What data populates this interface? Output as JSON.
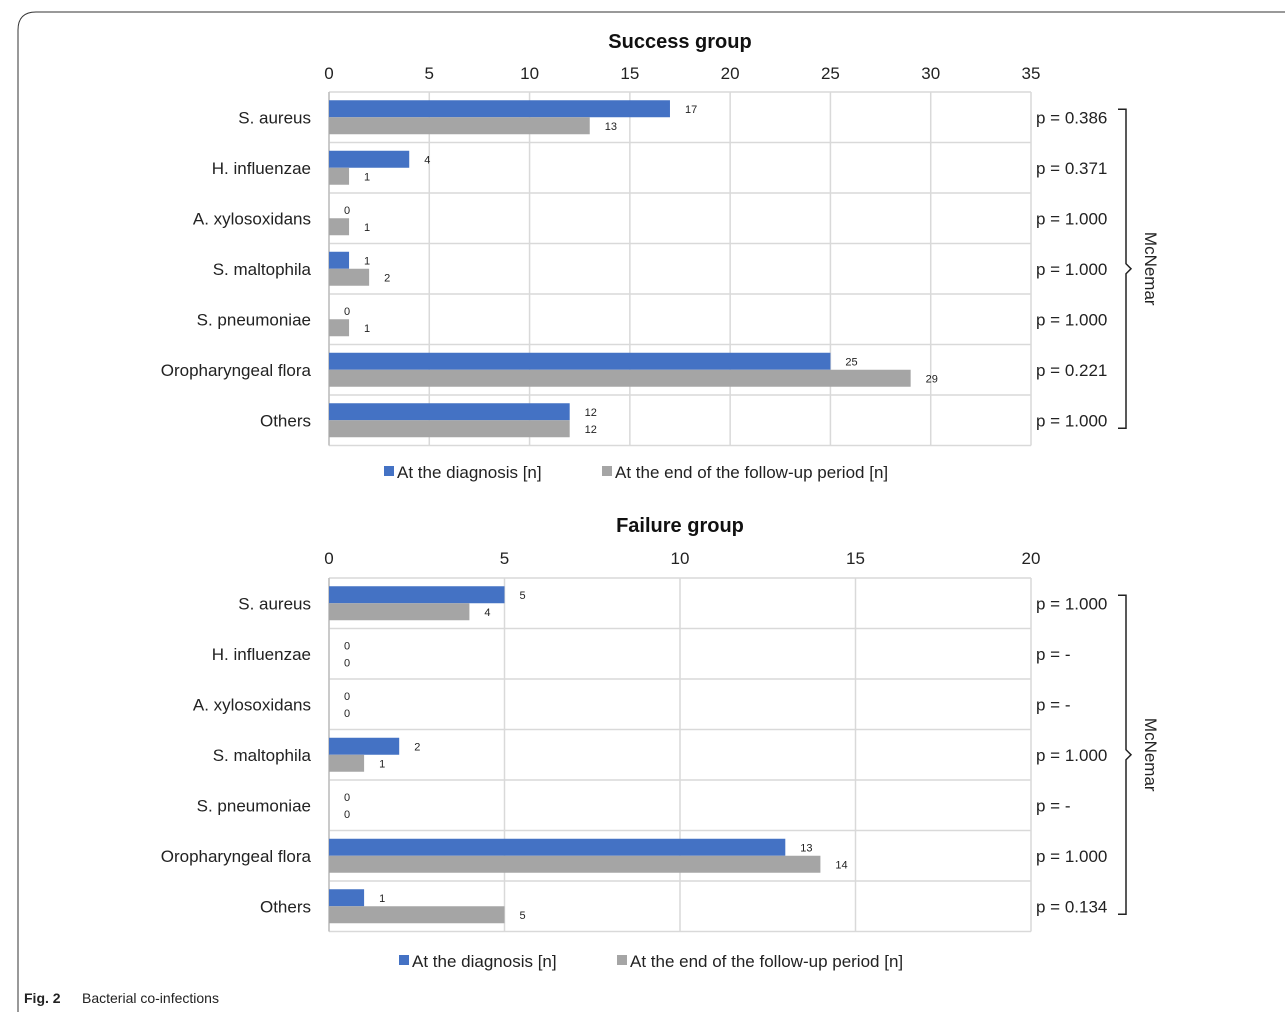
{
  "caption": {
    "prefix": "Fig. 2",
    "text": "Bacterial co-infections"
  },
  "legend": {
    "series_a": "At the diagnosis [n]",
    "series_b": "At the end of the follow-up period [n]"
  },
  "colors": {
    "series_a": "#4472C4",
    "series_b": "#A5A5A5",
    "grid": "#D9D9D9",
    "frame": "#333333"
  },
  "chart_data": [
    {
      "type": "bar",
      "orientation": "horizontal",
      "title": "Success group",
      "xlim": [
        0,
        35
      ],
      "ticks": [
        0,
        5,
        10,
        15,
        20,
        25,
        30,
        35
      ],
      "categories": [
        "S. aureus",
        "H. influenzae",
        "A. xylosoxidans",
        "S. maltophila",
        "S. pneumoniae",
        "Oropharyngeal flora",
        "Others"
      ],
      "series": [
        {
          "name": "At the diagnosis [n]",
          "values": [
            17,
            4,
            0,
            1,
            0,
            25,
            12
          ]
        },
        {
          "name": "At the end of the follow-up period [n]",
          "values": [
            13,
            1,
            1,
            2,
            1,
            29,
            12
          ]
        }
      ],
      "p_values": [
        "p = 0.386",
        "p = 0.371",
        "p = 1.000",
        "p = 1.000",
        "p = 1.000",
        "p = 0.221",
        "p = 1.000"
      ],
      "bracket_label": "McNemar",
      "grid": true,
      "legend_position": "bottom"
    },
    {
      "type": "bar",
      "orientation": "horizontal",
      "title": "Failure group",
      "xlim": [
        0,
        20
      ],
      "ticks": [
        0,
        5,
        10,
        15,
        20
      ],
      "categories": [
        "S. aureus",
        "H. influenzae",
        "A. xylosoxidans",
        "S. maltophila",
        "S. pneumoniae",
        "Oropharyngeal flora",
        "Others"
      ],
      "series": [
        {
          "name": "At the diagnosis [n]",
          "values": [
            5,
            0,
            0,
            2,
            0,
            13,
            1
          ]
        },
        {
          "name": "At the end of the follow-up period [n]",
          "values": [
            4,
            0,
            0,
            1,
            0,
            14,
            5
          ]
        }
      ],
      "p_values": [
        "p = 1.000",
        "p = -",
        "p = -",
        "p = 1.000",
        "p = -",
        "p = 1.000",
        "p = 0.134"
      ],
      "bracket_label": "McNemar",
      "grid": true,
      "legend_position": "bottom"
    }
  ]
}
